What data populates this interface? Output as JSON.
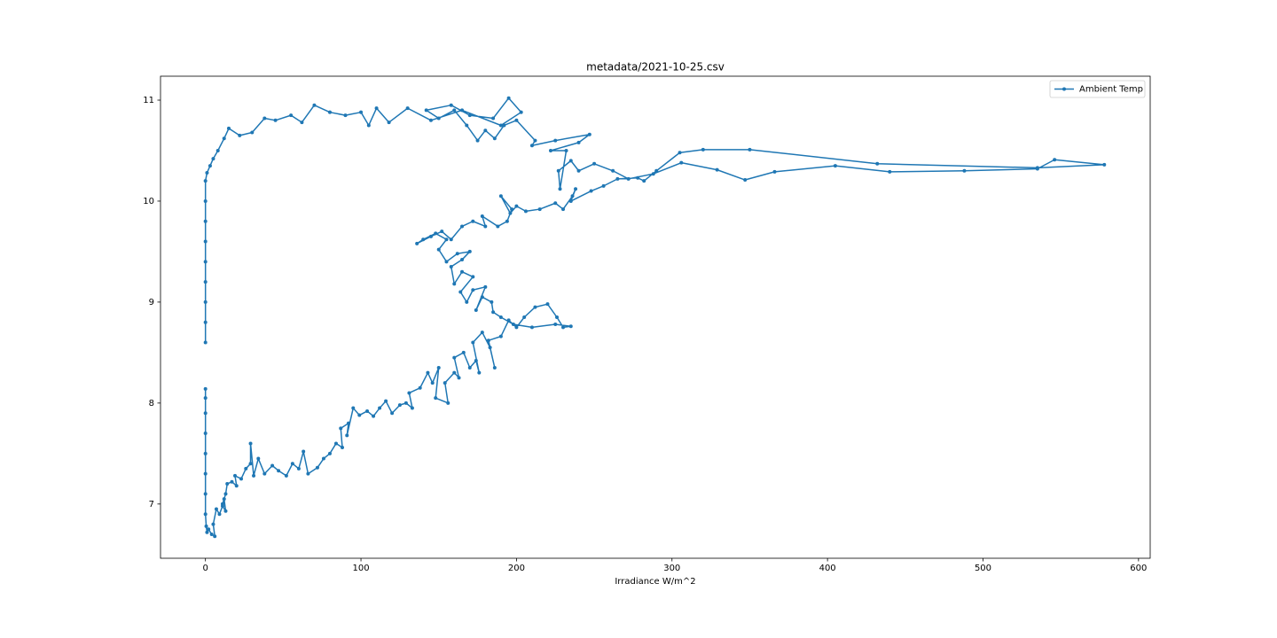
{
  "chart_data": {
    "type": "line",
    "title": "metadata/2021-10-25.csv",
    "x_label": "Irradiance W/m^2",
    "x": [
      0,
      0,
      0,
      0,
      0,
      0,
      0,
      0,
      0.5,
      1,
      2,
      4,
      6,
      5,
      7,
      9,
      11,
      13,
      12,
      11,
      13,
      14,
      17,
      20,
      19,
      23,
      26,
      29,
      29,
      31,
      34,
      38,
      43,
      47,
      52,
      56,
      60,
      63,
      66,
      72,
      76,
      80,
      84,
      88,
      87,
      92,
      91,
      95,
      99,
      104,
      108,
      112,
      116,
      120,
      125,
      129,
      133,
      131,
      138,
      143,
      146,
      150,
      148,
      156,
      154,
      160,
      163,
      160,
      166,
      170,
      174,
      176,
      172,
      178,
      183,
      186,
      182,
      190,
      195,
      200,
      205,
      212,
      220,
      226,
      230,
      235,
      225,
      210,
      198,
      190,
      185,
      184,
      178,
      174,
      180,
      172,
      168,
      164,
      172,
      165,
      160,
      158,
      165,
      170,
      162,
      155,
      150,
      155,
      148,
      140,
      136,
      145,
      152,
      158,
      165,
      172,
      180,
      178,
      188,
      194,
      197,
      190,
      196,
      200,
      206,
      215,
      225,
      230,
      236,
      238,
      235,
      248,
      256,
      265,
      278,
      282,
      290,
      305,
      320,
      350,
      432,
      535,
      578,
      546,
      535,
      488,
      440,
      405,
      366,
      347,
      329,
      306,
      288,
      272,
      262,
      250,
      240,
      235,
      227,
      228,
      232,
      222,
      240,
      247,
      225,
      210,
      212,
      200,
      192,
      186,
      180,
      175,
      168,
      160,
      150,
      142,
      158,
      170,
      185,
      195,
      203,
      190,
      165,
      145,
      130,
      118,
      110,
      105,
      100,
      90,
      80,
      70,
      62,
      55,
      45,
      38,
      30,
      22,
      15,
      12,
      8,
      5,
      3,
      1,
      0,
      0,
      0,
      0,
      0,
      0,
      0,
      0,
      0
    ],
    "series": [
      {
        "name": "Ambient Temp",
        "color": "#1f77b4",
        "values": [
          8.14,
          8.05,
          7.9,
          7.7,
          7.5,
          7.3,
          7.1,
          6.9,
          6.78,
          6.72,
          6.75,
          6.7,
          6.68,
          6.8,
          6.95,
          6.9,
          6.98,
          6.93,
          7.05,
          7.0,
          7.1,
          7.2,
          7.22,
          7.18,
          7.28,
          7.25,
          7.35,
          7.4,
          7.6,
          7.28,
          7.45,
          7.3,
          7.38,
          7.33,
          7.28,
          7.4,
          7.35,
          7.52,
          7.3,
          7.36,
          7.45,
          7.5,
          7.6,
          7.56,
          7.75,
          7.8,
          7.68,
          7.95,
          7.88,
          7.92,
          7.87,
          7.95,
          8.02,
          7.9,
          7.98,
          8.0,
          7.95,
          8.1,
          8.15,
          8.3,
          8.2,
          8.35,
          8.05,
          8.0,
          8.2,
          8.3,
          8.25,
          8.45,
          8.5,
          8.35,
          8.42,
          8.3,
          8.6,
          8.7,
          8.55,
          8.35,
          8.62,
          8.66,
          8.82,
          8.75,
          8.85,
          8.95,
          8.98,
          8.85,
          8.75,
          8.76,
          8.78,
          8.75,
          8.78,
          8.85,
          8.9,
          9.0,
          9.05,
          8.92,
          9.15,
          9.12,
          9.0,
          9.1,
          9.25,
          9.3,
          9.18,
          9.35,
          9.42,
          9.5,
          9.48,
          9.4,
          9.52,
          9.62,
          9.68,
          9.62,
          9.58,
          9.65,
          9.7,
          9.62,
          9.75,
          9.8,
          9.75,
          9.85,
          9.75,
          9.8,
          9.92,
          10.05,
          9.88,
          9.95,
          9.9,
          9.92,
          9.98,
          9.92,
          10.05,
          10.12,
          10.0,
          10.1,
          10.15,
          10.22,
          10.23,
          10.2,
          10.3,
          10.48,
          10.51,
          10.51,
          10.37,
          10.33,
          10.36,
          10.41,
          10.32,
          10.3,
          10.29,
          10.35,
          10.29,
          10.21,
          10.31,
          10.38,
          10.27,
          10.22,
          10.3,
          10.37,
          10.3,
          10.4,
          10.3,
          10.12,
          10.5,
          10.5,
          10.58,
          10.66,
          10.6,
          10.55,
          10.6,
          10.8,
          10.75,
          10.62,
          10.7,
          10.6,
          10.75,
          10.9,
          10.82,
          10.9,
          10.95,
          10.85,
          10.82,
          11.02,
          10.88,
          10.75,
          10.9,
          10.8,
          10.92,
          10.78,
          10.92,
          10.75,
          10.88,
          10.85,
          10.88,
          10.95,
          10.78,
          10.85,
          10.8,
          10.82,
          10.68,
          10.65,
          10.72,
          10.62,
          10.5,
          10.42,
          10.35,
          10.28,
          10.2,
          10.0,
          9.8,
          9.6,
          9.4,
          9.2,
          9.0,
          8.8,
          8.6
        ]
      }
    ],
    "xlim": [
      -28.9,
      607.5
    ],
    "ylim": [
      6.463,
      11.237
    ],
    "xticks": [
      0,
      100,
      200,
      300,
      400,
      500,
      600
    ],
    "yticks": [
      7,
      8,
      9,
      10,
      11
    ],
    "grid": false,
    "legend": "upper right",
    "markers": true
  }
}
